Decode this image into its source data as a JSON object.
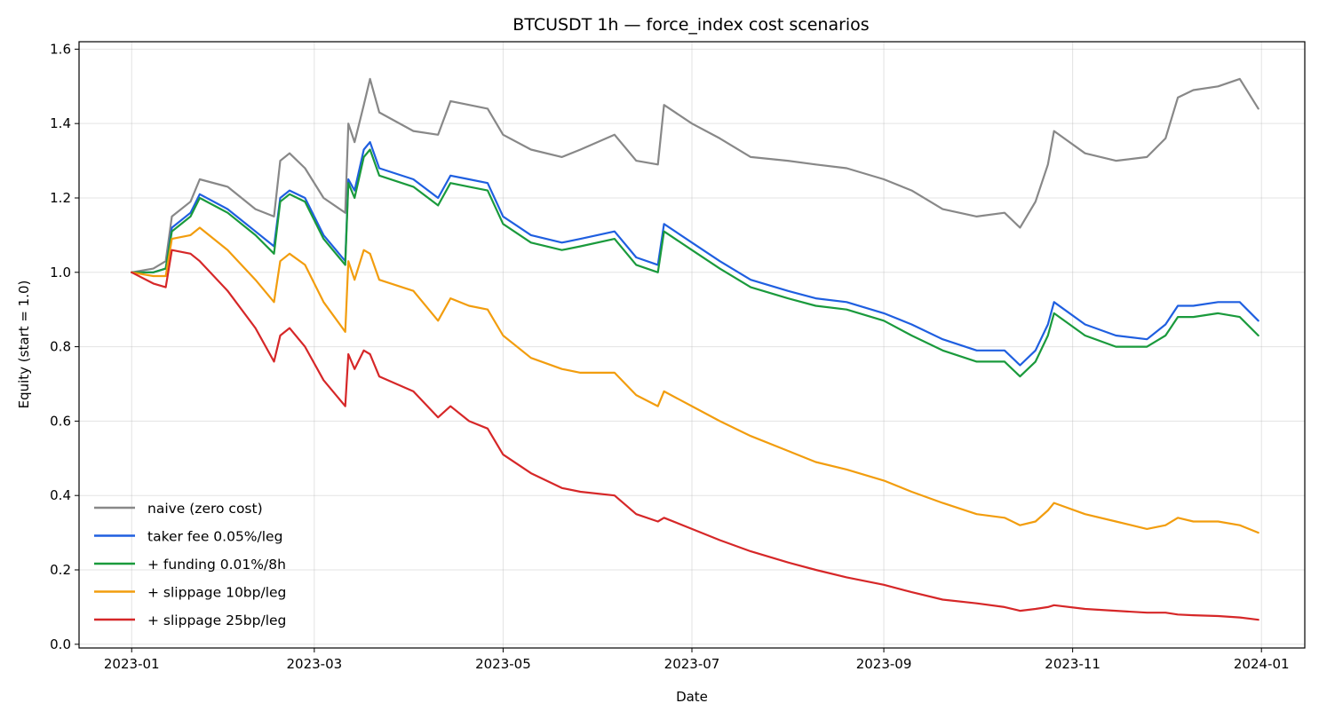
{
  "chart_data": {
    "type": "line",
    "title": "BTCUSDT 1h — force_index cost scenarios",
    "xlabel": "Date",
    "ylabel": "Equity (start = 1.0)",
    "xlim": [
      "2022-12-15",
      "2024-01-15"
    ],
    "ylim": [
      -0.01,
      1.62
    ],
    "x_ticks": [
      "2023-01",
      "2023-03",
      "2023-05",
      "2023-07",
      "2023-09",
      "2023-11",
      "2024-01"
    ],
    "y_ticks": [
      0.0,
      0.2,
      0.4,
      0.6,
      0.8,
      1.0,
      1.2,
      1.4,
      1.6
    ],
    "y_tick_labels": [
      "0.0",
      "0.2",
      "0.4",
      "0.6",
      "0.8",
      "1.0",
      "1.2",
      "1.4",
      "1.6"
    ],
    "grid": true,
    "legend_position": "lower-left",
    "x": [
      "2023-01-01",
      "2023-01-08",
      "2023-01-12",
      "2023-01-14",
      "2023-01-20",
      "2023-01-23",
      "2023-02-01",
      "2023-02-10",
      "2023-02-16",
      "2023-02-18",
      "2023-02-21",
      "2023-02-26",
      "2023-03-04",
      "2023-03-11",
      "2023-03-12",
      "2023-03-14",
      "2023-03-17",
      "2023-03-19",
      "2023-03-22",
      "2023-04-02",
      "2023-04-10",
      "2023-04-14",
      "2023-04-20",
      "2023-04-26",
      "2023-05-01",
      "2023-05-10",
      "2023-05-20",
      "2023-05-26",
      "2023-06-06",
      "2023-06-13",
      "2023-06-20",
      "2023-06-22",
      "2023-07-01",
      "2023-07-10",
      "2023-07-20",
      "2023-08-01",
      "2023-08-10",
      "2023-08-20",
      "2023-09-01",
      "2023-09-10",
      "2023-09-20",
      "2023-10-01",
      "2023-10-10",
      "2023-10-15",
      "2023-10-20",
      "2023-10-24",
      "2023-10-26",
      "2023-11-05",
      "2023-11-15",
      "2023-11-25",
      "2023-12-01",
      "2023-12-05",
      "2023-12-10",
      "2023-12-18",
      "2023-12-25",
      "2023-12-31"
    ],
    "series": [
      {
        "name": "naive (zero cost)",
        "color": "#888888",
        "values": [
          1.0,
          1.01,
          1.03,
          1.15,
          1.19,
          1.25,
          1.23,
          1.17,
          1.15,
          1.3,
          1.32,
          1.28,
          1.2,
          1.16,
          1.4,
          1.35,
          1.45,
          1.52,
          1.43,
          1.38,
          1.37,
          1.46,
          1.45,
          1.44,
          1.37,
          1.33,
          1.31,
          1.33,
          1.37,
          1.3,
          1.29,
          1.45,
          1.4,
          1.36,
          1.31,
          1.3,
          1.29,
          1.28,
          1.25,
          1.22,
          1.17,
          1.15,
          1.16,
          1.12,
          1.19,
          1.29,
          1.38,
          1.32,
          1.3,
          1.31,
          1.36,
          1.47,
          1.49,
          1.5,
          1.52,
          1.44
        ]
      },
      {
        "name": "taker fee 0.05%/leg",
        "color": "#1f5fe0",
        "values": [
          1.0,
          1.0,
          1.01,
          1.12,
          1.16,
          1.21,
          1.17,
          1.11,
          1.07,
          1.2,
          1.22,
          1.2,
          1.1,
          1.03,
          1.25,
          1.22,
          1.33,
          1.35,
          1.28,
          1.25,
          1.2,
          1.26,
          1.25,
          1.24,
          1.15,
          1.1,
          1.08,
          1.09,
          1.11,
          1.04,
          1.02,
          1.13,
          1.08,
          1.03,
          0.98,
          0.95,
          0.93,
          0.92,
          0.89,
          0.86,
          0.82,
          0.79,
          0.79,
          0.75,
          0.79,
          0.86,
          0.92,
          0.86,
          0.83,
          0.82,
          0.86,
          0.91,
          0.91,
          0.92,
          0.92,
          0.87
        ]
      },
      {
        "name": "+ funding 0.01%/8h",
        "color": "#1a9a3c",
        "values": [
          1.0,
          1.0,
          1.01,
          1.11,
          1.15,
          1.2,
          1.16,
          1.1,
          1.05,
          1.19,
          1.21,
          1.19,
          1.09,
          1.02,
          1.24,
          1.2,
          1.31,
          1.33,
          1.26,
          1.23,
          1.18,
          1.24,
          1.23,
          1.22,
          1.13,
          1.08,
          1.06,
          1.07,
          1.09,
          1.02,
          1.0,
          1.11,
          1.06,
          1.01,
          0.96,
          0.93,
          0.91,
          0.9,
          0.87,
          0.83,
          0.79,
          0.76,
          0.76,
          0.72,
          0.76,
          0.83,
          0.89,
          0.83,
          0.8,
          0.8,
          0.83,
          0.88,
          0.88,
          0.89,
          0.88,
          0.83
        ]
      },
      {
        "name": "+ slippage 10bp/leg",
        "color": "#f29d0e",
        "values": [
          1.0,
          0.99,
          0.99,
          1.09,
          1.1,
          1.12,
          1.06,
          0.98,
          0.92,
          1.03,
          1.05,
          1.02,
          0.92,
          0.84,
          1.03,
          0.98,
          1.06,
          1.05,
          0.98,
          0.95,
          0.87,
          0.93,
          0.91,
          0.9,
          0.83,
          0.77,
          0.74,
          0.73,
          0.73,
          0.67,
          0.64,
          0.68,
          0.64,
          0.6,
          0.56,
          0.52,
          0.49,
          0.47,
          0.44,
          0.41,
          0.38,
          0.35,
          0.34,
          0.32,
          0.33,
          0.36,
          0.38,
          0.35,
          0.33,
          0.31,
          0.32,
          0.34,
          0.33,
          0.33,
          0.32,
          0.3
        ]
      },
      {
        "name": "+ slippage 25bp/leg",
        "color": "#d62728",
        "values": [
          1.0,
          0.97,
          0.96,
          1.06,
          1.05,
          1.03,
          0.95,
          0.85,
          0.76,
          0.83,
          0.85,
          0.8,
          0.71,
          0.64,
          0.78,
          0.74,
          0.79,
          0.78,
          0.72,
          0.68,
          0.61,
          0.64,
          0.6,
          0.58,
          0.51,
          0.46,
          0.42,
          0.41,
          0.4,
          0.35,
          0.33,
          0.34,
          0.31,
          0.28,
          0.25,
          0.22,
          0.2,
          0.18,
          0.16,
          0.14,
          0.12,
          0.11,
          0.1,
          0.09,
          0.095,
          0.1,
          0.105,
          0.095,
          0.09,
          0.085,
          0.085,
          0.08,
          0.078,
          0.076,
          0.072,
          0.066
        ]
      }
    ]
  }
}
